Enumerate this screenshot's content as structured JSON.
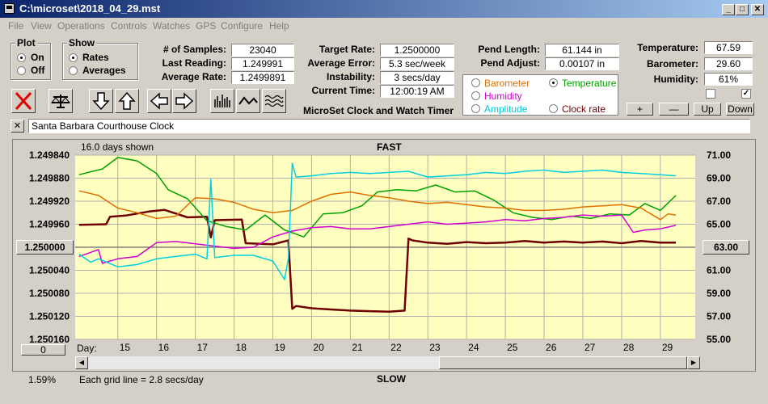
{
  "window": {
    "title": "C:\\microset\\2018_04_29.mst",
    "minimize": "_",
    "maximize": "□",
    "close": "✕"
  },
  "menu": [
    "File",
    "View",
    "Operations",
    "Controls",
    "Watches",
    "GPS",
    "Configure",
    "Help"
  ],
  "plot_group": {
    "label": "Plot",
    "on": "On",
    "off": "Off",
    "selected": "On"
  },
  "show_group": {
    "label": "Show",
    "rates": "Rates",
    "averages": "Averages",
    "selected": "Rates"
  },
  "stats": {
    "samples_label": "# of Samples:",
    "samples": "23040",
    "last_label": "Last Reading:",
    "last": "1.249991",
    "avg_label": "Average Rate:",
    "avg": "1.2499891"
  },
  "rates": {
    "target_label": "Target Rate:",
    "target": "1.2500000",
    "avgerr_label": "Average Error:",
    "avgerr": "5.3 sec/week",
    "instab_label": "Instability:",
    "instab": "3 secs/day",
    "time_label": "Current Time:",
    "time": "12:00:19 AM"
  },
  "app_name": "MicroSet Clock and Watch Timer",
  "pend": {
    "length_label": "Pend Length:",
    "length": "61.144 in",
    "adjust_label": "Pend Adjust:",
    "adjust": "0.00107 in"
  },
  "sensors": {
    "temp_label": "Temperature:",
    "temp": "67.59",
    "baro_label": "Barometer:",
    "baro": "29.60",
    "hum_label": "Humidity:",
    "hum": "61%"
  },
  "right_axis_group": {
    "barometer": "Barometer",
    "temperature": "Temperature",
    "humidity": "Humidity",
    "amplitude": "Amplitude",
    "clock_rate": "Clock rate",
    "selected": "Temperature",
    "colors": {
      "barometer": "#e07000",
      "temperature": "#00a000",
      "humidity": "#d000d0",
      "amplitude": "#00d0e0",
      "clock_rate": "#700000"
    }
  },
  "scale_buttons": {
    "plus": "+",
    "minus": "—",
    "up": "Up",
    "down": "Down"
  },
  "clock_close": "✕",
  "clock_name": "Santa Barbara Courthouse Clock",
  "chart": {
    "days_shown": "16.0 days shown",
    "fast": "FAST",
    "slow": "SLOW",
    "grid_note": "Each grid line = 2.8 secs/day",
    "percent": "1.59%",
    "day_label": "Day:",
    "left_scroll_value": "0",
    "center_left": "1.250000",
    "center_right": "63.00"
  },
  "chart_data": {
    "type": "line",
    "x_label": "Day",
    "x_ticks": [
      15,
      16,
      17,
      18,
      19,
      20,
      21,
      22,
      23,
      24,
      25,
      26,
      27,
      28,
      29
    ],
    "xlim": [
      13.9,
      29.9
    ],
    "left_ticks": [
      "1.249840",
      "1.249880",
      "1.249920",
      "1.249960",
      "1.250000",
      "1.250040",
      "1.250080",
      "1.250120",
      "1.250160"
    ],
    "left_lim": [
      1.24984,
      1.25016
    ],
    "right_ticks": [
      "71.00",
      "69.00",
      "67.00",
      "65.00",
      "63.00",
      "61.00",
      "59.00",
      "57.00",
      "55.00"
    ],
    "right_lim": [
      55,
      71
    ],
    "series": [
      {
        "name": "Clock rate",
        "axis": "left",
        "color": "#700000",
        "x": [
          14,
          14.7,
          14.8,
          15.2,
          15.8,
          16.2,
          16.8,
          17.3,
          17.4,
          17.5,
          18.2,
          18.3,
          19.0,
          19.4,
          19.5,
          19.6,
          20.0,
          20.5,
          21.0,
          21.5,
          22.0,
          22.4,
          22.5,
          22.6,
          23.0,
          23.5,
          24.0,
          24.5,
          25.0,
          25.5,
          26.0,
          26.5,
          27.0,
          27.5,
          28.0,
          28.5,
          29.0,
          29.4
        ],
        "y": [
          1.249961,
          1.24996,
          1.249947,
          1.249945,
          1.249938,
          1.249935,
          1.249948,
          1.249947,
          1.249983,
          1.249953,
          1.249952,
          1.249993,
          1.249995,
          1.249988,
          1.250107,
          1.250102,
          1.250106,
          1.250108,
          1.25011,
          1.250111,
          1.250112,
          1.25011,
          1.249985,
          1.249988,
          1.249992,
          1.249994,
          1.249991,
          1.249993,
          1.249992,
          1.249989,
          1.249992,
          1.24999,
          1.249992,
          1.24999,
          1.249993,
          1.249989,
          1.249992,
          1.249992
        ]
      },
      {
        "name": "Temperature",
        "axis": "right",
        "color": "#00a000",
        "x": [
          14,
          14.6,
          15.0,
          15.5,
          16.0,
          16.3,
          16.8,
          17.3,
          17.8,
          18.3,
          18.8,
          19.3,
          19.8,
          20.3,
          20.8,
          21.3,
          21.7,
          22.2,
          22.7,
          23.2,
          23.7,
          24.2,
          24.7,
          25.2,
          25.7,
          26.2,
          26.7,
          27.2,
          27.7,
          28.2,
          28.6,
          29.0,
          29.4
        ],
        "y": [
          69.3,
          69.8,
          70.8,
          70.5,
          69.4,
          68.0,
          67.2,
          65.3,
          64.8,
          64.5,
          65.8,
          64.5,
          63.9,
          65.9,
          66.0,
          66.6,
          67.8,
          68.0,
          67.9,
          68.4,
          67.8,
          67.9,
          67.1,
          66.0,
          65.6,
          65.4,
          65.7,
          65.5,
          65.9,
          65.8,
          66.8,
          66.2,
          67.5
        ]
      },
      {
        "name": "Barometer",
        "axis": "right",
        "color": "#e07000",
        "x": [
          14,
          14.5,
          15.0,
          15.5,
          16.0,
          16.5,
          17.0,
          17.5,
          18.0,
          18.5,
          19.0,
          19.5,
          20.0,
          20.5,
          21.0,
          21.5,
          22.0,
          22.5,
          23.0,
          23.5,
          24.0,
          24.5,
          25.0,
          25.5,
          26.0,
          26.5,
          27.0,
          27.5,
          28.0,
          28.5,
          29.0,
          29.2,
          29.4
        ],
        "y": [
          67.9,
          67.5,
          66.4,
          66.0,
          65.5,
          65.7,
          67.3,
          67.2,
          66.9,
          66.3,
          66.0,
          66.2,
          67.0,
          67.6,
          67.8,
          67.5,
          67.3,
          67.0,
          66.8,
          66.9,
          66.7,
          66.5,
          66.4,
          66.2,
          66.2,
          66.3,
          66.5,
          66.6,
          66.7,
          66.4,
          65.4,
          65.9,
          65.8
        ]
      },
      {
        "name": "Humidity",
        "axis": "right",
        "color": "#d000d0",
        "x": [
          14,
          14.5,
          14.6,
          15.0,
          15.5,
          16.0,
          16.5,
          17.0,
          17.5,
          18.0,
          18.5,
          19.0,
          19.5,
          20.0,
          20.5,
          21.0,
          21.5,
          22.0,
          22.5,
          23.0,
          23.5,
          24.0,
          24.5,
          25.0,
          25.5,
          26.0,
          26.5,
          27.0,
          27.5,
          28.0,
          28.3,
          28.6,
          29.0,
          29.4
        ],
        "y": [
          62.2,
          62.8,
          61.6,
          62.0,
          62.2,
          63.4,
          63.5,
          63.3,
          63.1,
          62.9,
          63.0,
          63.9,
          64.4,
          64.7,
          64.8,
          64.6,
          64.6,
          64.8,
          65.0,
          65.2,
          65.0,
          65.1,
          65.2,
          65.4,
          65.3,
          65.5,
          65.6,
          65.8,
          65.7,
          65.8,
          64.3,
          64.5,
          64.6,
          64.9
        ]
      },
      {
        "name": "Amplitude",
        "axis": "right",
        "color": "#00d0e0",
        "x": [
          14,
          14.3,
          14.5,
          15.0,
          15.5,
          16.0,
          16.5,
          17.0,
          17.3,
          17.4,
          17.5,
          18.0,
          18.5,
          19.0,
          19.3,
          19.4,
          19.5,
          19.6,
          20.0,
          20.5,
          21.0,
          21.5,
          22.0,
          22.5,
          23.0,
          23.5,
          24.0,
          24.5,
          25.0,
          25.5,
          26.0,
          26.5,
          27.0,
          27.5,
          28.0,
          28.5,
          29.0,
          29.4
        ],
        "y": [
          62.4,
          61.7,
          62.0,
          61.3,
          61.5,
          62.0,
          62.2,
          62.4,
          62.0,
          68.9,
          62.1,
          62.3,
          62.3,
          61.8,
          60.2,
          62.0,
          70.3,
          69.1,
          69.2,
          69.4,
          69.5,
          69.4,
          69.5,
          69.6,
          69.1,
          69.2,
          69.3,
          69.5,
          69.4,
          69.6,
          69.7,
          69.5,
          69.6,
          69.7,
          69.5,
          69.4,
          69.3,
          69.2
        ]
      }
    ]
  }
}
